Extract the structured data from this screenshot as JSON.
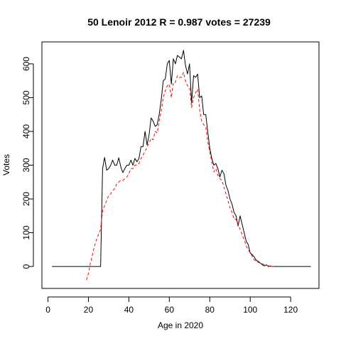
{
  "chart_data": {
    "type": "line",
    "title": "50 Lenoir 2012 R = 0.987 votes = 27239",
    "xlabel": "Age in 2020",
    "ylabel": "Votes",
    "xlim": [
      -3,
      134
    ],
    "ylim": [
      -65,
      665
    ],
    "xticks": [
      0,
      20,
      40,
      60,
      80,
      100,
      120
    ],
    "yticks": [
      0,
      100,
      200,
      300,
      400,
      500,
      600
    ],
    "grid": false,
    "legend": "none",
    "series": [
      {
        "style": "solid",
        "color": "#000000",
        "x": [
          2,
          25,
          26,
          27,
          28,
          29,
          30,
          31,
          32,
          33,
          34,
          35,
          36,
          37,
          38,
          39,
          40,
          41,
          42,
          43,
          44,
          45,
          46,
          47,
          48,
          49,
          50,
          51,
          52,
          53,
          54,
          55,
          56,
          57,
          58,
          59,
          60,
          61,
          62,
          63,
          64,
          65,
          66,
          67,
          68,
          69,
          70,
          71,
          72,
          73,
          74,
          75,
          76,
          77,
          78,
          79,
          80,
          81,
          82,
          83,
          84,
          85,
          86,
          87,
          88,
          89,
          90,
          91,
          92,
          93,
          94,
          95,
          96,
          97,
          98,
          99,
          100,
          101,
          102,
          103,
          104,
          105,
          106,
          107,
          108,
          109,
          110,
          111,
          112,
          113,
          130
        ],
        "y": [
          0,
          0,
          0,
          290,
          323,
          285,
          290,
          300,
          315,
          300,
          300,
          322,
          295,
          278,
          290,
          300,
          300,
          315,
          300,
          320,
          310,
          320,
          355,
          355,
          400,
          360,
          390,
          440,
          430,
          415,
          420,
          450,
          495,
          550,
          555,
          600,
          610,
          540,
          615,
          600,
          625,
          620,
          615,
          640,
          595,
          570,
          600,
          485,
          565,
          560,
          570,
          500,
          505,
          450,
          450,
          400,
          350,
          320,
          300,
          305,
          290,
          265,
          285,
          275,
          240,
          225,
          200,
          185,
          160,
          150,
          120,
          150,
          125,
          100,
          75,
          65,
          40,
          35,
          28,
          18,
          15,
          10,
          5,
          2,
          5,
          0,
          1,
          0,
          0,
          0,
          0
        ]
      },
      {
        "style": "dashed",
        "color": "#ff0000",
        "x": [
          19,
          20,
          21,
          22,
          23,
          24,
          25,
          26,
          27,
          28,
          29,
          30,
          31,
          32,
          33,
          34,
          35,
          36,
          37,
          38,
          39,
          40,
          41,
          42,
          43,
          44,
          45,
          46,
          47,
          48,
          49,
          50,
          51,
          52,
          53,
          54,
          55,
          56,
          57,
          58,
          59,
          60,
          61,
          62,
          63,
          64,
          65,
          66,
          67,
          68,
          69,
          70,
          71,
          72,
          73,
          74,
          75,
          76,
          77,
          78,
          79,
          80,
          81,
          82,
          83,
          84,
          85,
          86,
          87,
          88,
          89,
          90,
          91,
          92,
          93,
          94,
          95,
          96,
          97,
          98,
          99,
          100,
          101,
          102,
          103,
          104,
          105,
          106,
          107,
          108,
          109,
          110,
          111,
          112
        ],
        "y": [
          -40,
          -20,
          10,
          35,
          60,
          80,
          95,
          110,
          165,
          180,
          195,
          210,
          215,
          225,
          230,
          245,
          250,
          255,
          255,
          260,
          265,
          275,
          290,
          290,
          300,
          300,
          305,
          320,
          330,
          340,
          355,
          365,
          380,
          375,
          400,
          395,
          430,
          460,
          500,
          520,
          535,
          540,
          500,
          545,
          545,
          565,
          560,
          560,
          575,
          550,
          535,
          530,
          470,
          500,
          515,
          525,
          465,
          430,
          420,
          415,
          370,
          340,
          310,
          280,
          290,
          270,
          260,
          255,
          235,
          215,
          195,
          175,
          160,
          140,
          140,
          125,
          110,
          95,
          80,
          60,
          50,
          40,
          30,
          20,
          15,
          12,
          10,
          8,
          5,
          3,
          2,
          1,
          0,
          0
        ]
      }
    ]
  }
}
